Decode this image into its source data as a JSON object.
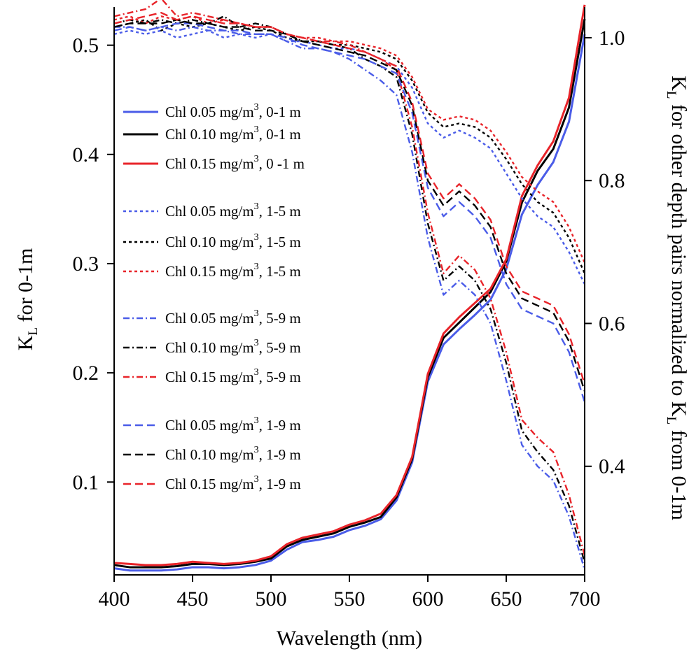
{
  "chart_data": {
    "type": "line",
    "xlabel": "Wavelength (nm)",
    "ylabel_left": {
      "main": "K",
      "sub": "L",
      "rest": " for 0-1m"
    },
    "ylabel_right": {
      "part1": "K",
      "sub1": "L",
      "part2": " for other depth pairs normalized to K",
      "sub2": "L",
      "part3": " from 0-1m"
    },
    "xlim": [
      400,
      700
    ],
    "ylim_left": [
      0.015,
      0.535
    ],
    "ylim_right": [
      0.248,
      1.043
    ],
    "xticks": [
      400,
      450,
      500,
      550,
      600,
      650,
      700
    ],
    "xtick_labels": [
      "400",
      "450",
      "500",
      "550",
      "600",
      "650",
      "700"
    ],
    "yticks_left": [
      0.1,
      0.2,
      0.3,
      0.4,
      0.5
    ],
    "ytick_labels_left": [
      "0.1",
      "0.2",
      "0.3",
      "0.4",
      "0.5"
    ],
    "yticks_right": [
      0.4,
      0.6,
      0.8,
      1.0
    ],
    "ytick_labels_right": [
      "0.4",
      "0.6",
      "0.8",
      "1.0"
    ],
    "grid": false,
    "legend_position": "left",
    "colors": {
      "chl005": "#4a5ce8",
      "chl010": "#000000",
      "chl015": "#e8242a"
    },
    "series": [
      {
        "name": "Chl 0.05 mg/m",
        "sup": "3",
        "depth": ", 0-1 m",
        "axis": "left",
        "style": "solid",
        "color": "#4a5ce8",
        "x": [
          400,
          410,
          420,
          430,
          440,
          450,
          460,
          470,
          480,
          490,
          500,
          510,
          520,
          530,
          540,
          550,
          560,
          570,
          580,
          590,
          600,
          610,
          620,
          630,
          640,
          650,
          660,
          670,
          680,
          690,
          700
        ],
        "y": [
          0.021,
          0.019,
          0.019,
          0.019,
          0.02,
          0.022,
          0.022,
          0.021,
          0.022,
          0.024,
          0.028,
          0.038,
          0.045,
          0.047,
          0.05,
          0.056,
          0.06,
          0.066,
          0.083,
          0.118,
          0.192,
          0.226,
          0.24,
          0.253,
          0.267,
          0.295,
          0.345,
          0.372,
          0.393,
          0.43,
          0.51
        ]
      },
      {
        "name": "Chl 0.10 mg/m",
        "sup": "3",
        "depth": ", 0-1 m",
        "axis": "left",
        "style": "solid",
        "color": "#000000",
        "x": [
          400,
          410,
          420,
          430,
          440,
          450,
          460,
          470,
          480,
          490,
          500,
          510,
          520,
          530,
          540,
          550,
          560,
          570,
          580,
          590,
          600,
          610,
          620,
          630,
          640,
          650,
          660,
          670,
          680,
          690,
          700
        ],
        "y": [
          0.024,
          0.022,
          0.022,
          0.022,
          0.023,
          0.025,
          0.025,
          0.024,
          0.025,
          0.027,
          0.03,
          0.041,
          0.047,
          0.05,
          0.053,
          0.059,
          0.063,
          0.068,
          0.086,
          0.121,
          0.196,
          0.232,
          0.246,
          0.26,
          0.274,
          0.302,
          0.356,
          0.385,
          0.405,
          0.443,
          0.524
        ]
      },
      {
        "name": "Chl 0.15 mg/m",
        "sup": "3",
        "depth": ", 0 -1 m",
        "axis": "left",
        "style": "solid",
        "color": "#e8242a",
        "x": [
          400,
          410,
          420,
          430,
          440,
          450,
          460,
          470,
          480,
          490,
          500,
          510,
          520,
          530,
          540,
          550,
          560,
          570,
          580,
          590,
          600,
          610,
          620,
          630,
          640,
          650,
          660,
          670,
          680,
          690,
          700
        ],
        "y": [
          0.026,
          0.025,
          0.024,
          0.024,
          0.025,
          0.027,
          0.026,
          0.025,
          0.026,
          0.028,
          0.032,
          0.043,
          0.049,
          0.052,
          0.055,
          0.061,
          0.065,
          0.071,
          0.088,
          0.123,
          0.199,
          0.236,
          0.251,
          0.264,
          0.277,
          0.304,
          0.362,
          0.39,
          0.412,
          0.452,
          0.537
        ]
      },
      {
        "name": "Chl 0.05 mg/m",
        "sup": "3",
        "depth": ", 1-5 m",
        "axis": "right",
        "style": "dotted",
        "color": "#4a5ce8",
        "x": [
          400,
          410,
          420,
          430,
          440,
          450,
          460,
          470,
          480,
          490,
          500,
          510,
          520,
          530,
          540,
          550,
          560,
          570,
          580,
          590,
          600,
          610,
          620,
          630,
          640,
          650,
          660,
          670,
          680,
          690,
          700
        ],
        "y": [
          1.005,
          1.01,
          1.005,
          1.01,
          1.0,
          1.005,
          1.01,
          1.0,
          1.005,
          1.0,
          1.005,
          0.995,
          0.995,
          0.99,
          0.985,
          0.985,
          0.98,
          0.97,
          0.96,
          0.93,
          0.88,
          0.86,
          0.87,
          0.86,
          0.845,
          0.81,
          0.775,
          0.75,
          0.735,
          0.7,
          0.655
        ]
      },
      {
        "name": "Chl 0.10 mg/m",
        "sup": "3",
        "depth": ", 1-5 m",
        "axis": "right",
        "style": "dotted",
        "color": "#000000",
        "x": [
          400,
          410,
          420,
          430,
          440,
          450,
          460,
          470,
          480,
          490,
          500,
          510,
          520,
          530,
          540,
          550,
          560,
          570,
          580,
          590,
          600,
          610,
          620,
          630,
          640,
          650,
          660,
          670,
          680,
          690,
          700
        ],
        "y": [
          1.015,
          1.02,
          1.025,
          1.01,
          1.02,
          1.015,
          1.02,
          1.015,
          1.01,
          1.015,
          1.01,
          1.0,
          0.995,
          0.995,
          0.99,
          0.99,
          0.985,
          0.98,
          0.97,
          0.94,
          0.895,
          0.875,
          0.88,
          0.875,
          0.86,
          0.83,
          0.795,
          0.77,
          0.755,
          0.72,
          0.67
        ]
      },
      {
        "name": "Chl 0.15 mg/m",
        "sup": "3",
        "depth": ", 1-5 m",
        "axis": "right",
        "style": "dotted",
        "color": "#e8242a",
        "x": [
          400,
          410,
          420,
          430,
          440,
          450,
          460,
          470,
          480,
          490,
          500,
          510,
          520,
          530,
          540,
          550,
          560,
          570,
          580,
          590,
          600,
          610,
          620,
          630,
          640,
          650,
          660,
          670,
          680,
          690,
          700
        ],
        "y": [
          1.025,
          1.03,
          1.02,
          1.03,
          1.025,
          1.03,
          1.02,
          1.025,
          1.02,
          1.015,
          1.015,
          1.005,
          1.0,
          1.0,
          0.995,
          0.995,
          0.99,
          0.985,
          0.975,
          0.945,
          0.9,
          0.885,
          0.89,
          0.885,
          0.87,
          0.84,
          0.805,
          0.785,
          0.77,
          0.735,
          0.685
        ]
      },
      {
        "name": "Chl 0.05 mg/m",
        "sup": "3",
        "depth": ", 5-9 m",
        "axis": "right",
        "style": "dashdot",
        "color": "#4a5ce8",
        "x": [
          400,
          410,
          420,
          430,
          440,
          450,
          460,
          470,
          480,
          490,
          500,
          510,
          520,
          530,
          540,
          550,
          560,
          570,
          580,
          590,
          600,
          610,
          620,
          630,
          640,
          650,
          660,
          670,
          680,
          690,
          700
        ],
        "y": [
          1.015,
          1.015,
          1.01,
          1.015,
          1.01,
          1.015,
          1.01,
          1.01,
          1.005,
          1.005,
          1.005,
          0.995,
          0.985,
          0.985,
          0.98,
          0.97,
          0.955,
          0.94,
          0.92,
          0.84,
          0.72,
          0.64,
          0.66,
          0.64,
          0.6,
          0.52,
          0.43,
          0.4,
          0.38,
          0.33,
          0.255
        ]
      },
      {
        "name": "Chl 0.10 mg/m",
        "sup": "3",
        "depth": ", 5-9 m",
        "axis": "right",
        "style": "dashdot",
        "color": "#000000",
        "x": [
          400,
          410,
          420,
          430,
          440,
          450,
          460,
          470,
          480,
          490,
          500,
          510,
          520,
          530,
          540,
          550,
          560,
          570,
          580,
          590,
          600,
          610,
          620,
          630,
          640,
          650,
          660,
          670,
          680,
          690,
          700
        ],
        "y": [
          1.02,
          1.025,
          1.02,
          1.025,
          1.02,
          1.025,
          1.02,
          1.03,
          1.015,
          1.02,
          1.015,
          1.005,
          0.995,
          0.995,
          0.99,
          0.985,
          0.97,
          0.96,
          0.945,
          0.865,
          0.74,
          0.66,
          0.68,
          0.66,
          0.62,
          0.545,
          0.45,
          0.42,
          0.395,
          0.345,
          0.265
        ]
      },
      {
        "name": "Chl 0.15 mg/m",
        "sup": "3",
        "depth": ", 5-9 m",
        "axis": "right",
        "style": "dashdot",
        "color": "#e8242a",
        "x": [
          400,
          410,
          420,
          430,
          440,
          450,
          460,
          470,
          480,
          490,
          500,
          510,
          520,
          530,
          540,
          550,
          560,
          570,
          580,
          590,
          600,
          610,
          620,
          630,
          640,
          650,
          660,
          670,
          680,
          690,
          700
        ],
        "y": [
          1.03,
          1.035,
          1.04,
          1.055,
          1.03,
          1.035,
          1.03,
          1.025,
          1.02,
          1.015,
          1.015,
          1.005,
          1.0,
          0.995,
          0.995,
          0.99,
          0.98,
          0.97,
          0.955,
          0.875,
          0.755,
          0.67,
          0.695,
          0.675,
          0.635,
          0.56,
          0.465,
          0.44,
          0.42,
          0.36,
          0.275
        ]
      },
      {
        "name": "Chl 0.05 mg/m",
        "sup": "3",
        "depth": ", 1-9 m",
        "axis": "right",
        "style": "dashed",
        "color": "#4a5ce8",
        "x": [
          400,
          410,
          420,
          430,
          440,
          450,
          460,
          470,
          480,
          490,
          500,
          510,
          520,
          530,
          540,
          550,
          560,
          570,
          580,
          590,
          600,
          610,
          620,
          630,
          640,
          650,
          660,
          670,
          680,
          690,
          700
        ],
        "y": [
          1.01,
          1.015,
          1.01,
          1.015,
          1.02,
          1.02,
          1.015,
          1.01,
          1.01,
          1.005,
          1.005,
          1.0,
          0.99,
          0.985,
          0.98,
          0.975,
          0.97,
          0.96,
          0.95,
          0.895,
          0.79,
          0.75,
          0.77,
          0.75,
          0.72,
          0.655,
          0.62,
          0.61,
          0.6,
          0.56,
          0.49
        ]
      },
      {
        "name": "Chl 0.10 mg/m",
        "sup": "3",
        "depth": ", 1-9 m",
        "axis": "right",
        "style": "dashed",
        "color": "#000000",
        "x": [
          400,
          410,
          420,
          430,
          440,
          450,
          460,
          470,
          480,
          490,
          500,
          510,
          520,
          530,
          540,
          550,
          560,
          570,
          580,
          590,
          600,
          610,
          620,
          630,
          640,
          650,
          660,
          670,
          680,
          690,
          700
        ],
        "y": [
          1.015,
          1.02,
          1.02,
          1.02,
          1.025,
          1.02,
          1.02,
          1.015,
          1.015,
          1.01,
          1.01,
          1.005,
          0.995,
          0.99,
          0.985,
          0.98,
          0.975,
          0.965,
          0.955,
          0.905,
          0.8,
          0.765,
          0.785,
          0.765,
          0.735,
          0.67,
          0.635,
          0.625,
          0.615,
          0.575,
          0.505
        ]
      },
      {
        "name": "Chl 0.15 mg/m",
        "sup": "3",
        "depth": ", 1-9 m",
        "axis": "right",
        "style": "dashed",
        "color": "#e8242a",
        "x": [
          400,
          410,
          420,
          430,
          440,
          450,
          460,
          470,
          480,
          490,
          500,
          510,
          520,
          530,
          540,
          550,
          560,
          570,
          580,
          590,
          600,
          610,
          620,
          630,
          640,
          650,
          660,
          670,
          680,
          690,
          700
        ],
        "y": [
          1.02,
          1.025,
          1.03,
          1.035,
          1.025,
          1.03,
          1.025,
          1.02,
          1.02,
          1.015,
          1.015,
          1.005,
          1.0,
          0.995,
          0.99,
          0.985,
          0.98,
          0.97,
          0.96,
          0.91,
          0.81,
          0.775,
          0.795,
          0.775,
          0.745,
          0.68,
          0.645,
          0.635,
          0.625,
          0.585,
          0.515
        ]
      }
    ]
  }
}
